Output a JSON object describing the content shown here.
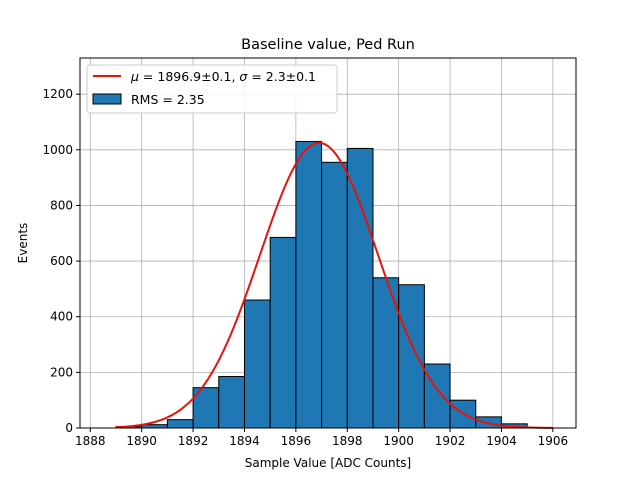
{
  "chart_data": {
    "type": "bar",
    "title": "Baseline value, Ped Run",
    "xlabel": "Sample Value [ADC Counts]",
    "ylabel": "Events",
    "xlim": [
      1887.6,
      1906.9
    ],
    "ylim": [
      0,
      1330
    ],
    "grid": true,
    "legend_position": "top-left",
    "xticks": [
      1888,
      1890,
      1892,
      1894,
      1896,
      1898,
      1900,
      1902,
      1904,
      1906
    ],
    "xtick_labels": [
      "1888",
      "1890",
      "1892",
      "1894",
      "1896",
      "1898",
      "1900",
      "1902",
      "1904",
      "1906"
    ],
    "yticks": [
      0,
      200,
      400,
      600,
      800,
      1000,
      1200
    ],
    "ytick_labels": [
      "0",
      "200",
      "400",
      "600",
      "800",
      "1000",
      "1200"
    ],
    "series": [
      {
        "name": "RMS = 2.35",
        "kind": "histogram",
        "color": "#1f77b4",
        "edge_color": "#000000",
        "bin_edges": [
          1889,
          1890,
          1891,
          1892,
          1893,
          1894,
          1895,
          1896,
          1897,
          1898,
          1899,
          1900,
          1901,
          1902,
          1903,
          1904,
          1905
        ],
        "values": [
          5,
          12,
          30,
          145,
          185,
          460,
          685,
          1030,
          955,
          1005,
          540,
          515,
          230,
          100,
          40,
          15
        ]
      },
      {
        "name": "$\\mu = 1896.9 \\pm 0.1$, $\\sigma = 2.3 \\pm 0.1$",
        "kind": "gaussian-fit",
        "color": "#e8120c",
        "mu": 1896.9,
        "sigma": 2.3,
        "amplitude": 1025,
        "x_range": [
          1889,
          1906
        ]
      }
    ],
    "legend": [
      {
        "label_parts": [
          "μ",
          " = 1896.9±0.1, ",
          "σ",
          " = 2.3±0.1"
        ],
        "swatch": "line",
        "color": "#e8120c"
      },
      {
        "label": "RMS = 2.35",
        "swatch": "patch",
        "color": "#1f77b4"
      }
    ]
  }
}
